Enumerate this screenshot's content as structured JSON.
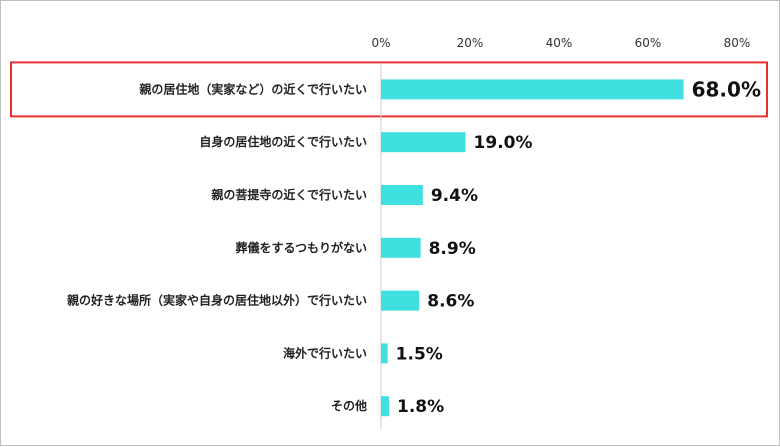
{
  "chart_data": {
    "type": "bar",
    "orientation": "horizontal",
    "categories": [
      "親の居住地（実家など）の近くで行いたい",
      "自身の居住地の近くで行いたい",
      "親の菩提寺の近くで行いたい",
      "葬儀をするつもりがない",
      "親の好きな場所（実家や自身の居住地以外）で行いたい",
      "海外で行いたい",
      "その他"
    ],
    "values": [
      68.0,
      19.0,
      9.4,
      8.9,
      8.6,
      1.5,
      1.8
    ],
    "value_labels": [
      "68.0%",
      "19.0%",
      "9.4%",
      "8.9%",
      "8.6%",
      "1.5%",
      "1.8%"
    ],
    "xlim": [
      0,
      80
    ],
    "ticks": [
      0,
      20,
      40,
      60,
      80
    ],
    "tick_labels": [
      "0%",
      "20%",
      "40%",
      "60%",
      "80%"
    ],
    "axis_position": "top",
    "grid": false,
    "highlighted_category_index": 0,
    "colors": {
      "bar": "#40e0e0",
      "highlight_border": "#e53030",
      "axis": "#cccccc"
    }
  }
}
